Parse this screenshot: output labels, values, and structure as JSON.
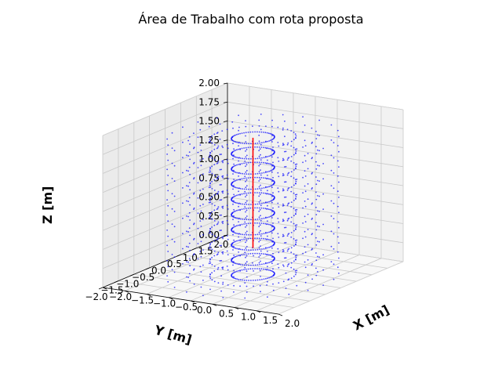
{
  "chart_data": {
    "type": "scatter",
    "projection": "3d",
    "title": "Área de Trabalho com rota proposta",
    "xlabel": "X [m]",
    "ylabel": "Y [m]",
    "zlabel": "Z [m]",
    "xlim": [
      -2.0,
      2.0
    ],
    "ylim": [
      -2.0,
      2.0
    ],
    "zlim": [
      0.0,
      2.0
    ],
    "x_ticks": [
      "−2.0",
      "−1.5",
      "−1.0",
      "−0.5",
      "0.0",
      "0.5",
      "1.0",
      "1.5",
      "2.0"
    ],
    "y_ticks": [
      "−2.0",
      "−1.5",
      "−1.0",
      "−0.5",
      "0.0",
      "0.5",
      "1.0",
      "1.5",
      "2.0"
    ],
    "z_ticks": [
      "0.00",
      "0.25",
      "0.50",
      "0.75",
      "1.00",
      "1.25",
      "1.50",
      "1.75",
      "2.00"
    ],
    "grid": true,
    "workspace": {
      "color": "#0000ff",
      "z_levels": [
        0.0,
        0.2,
        0.4,
        0.6,
        0.8,
        1.0,
        1.2,
        1.4,
        1.6,
        1.8
      ],
      "radii": [
        0.4,
        0.8,
        1.2,
        1.6
      ],
      "points_per_ring": [
        60,
        40,
        30,
        24
      ]
    },
    "route": {
      "color": "#ff0000",
      "x": [
        0.0,
        0.0
      ],
      "y": [
        0.0,
        0.0
      ],
      "z": [
        0.35,
        1.8
      ]
    }
  }
}
